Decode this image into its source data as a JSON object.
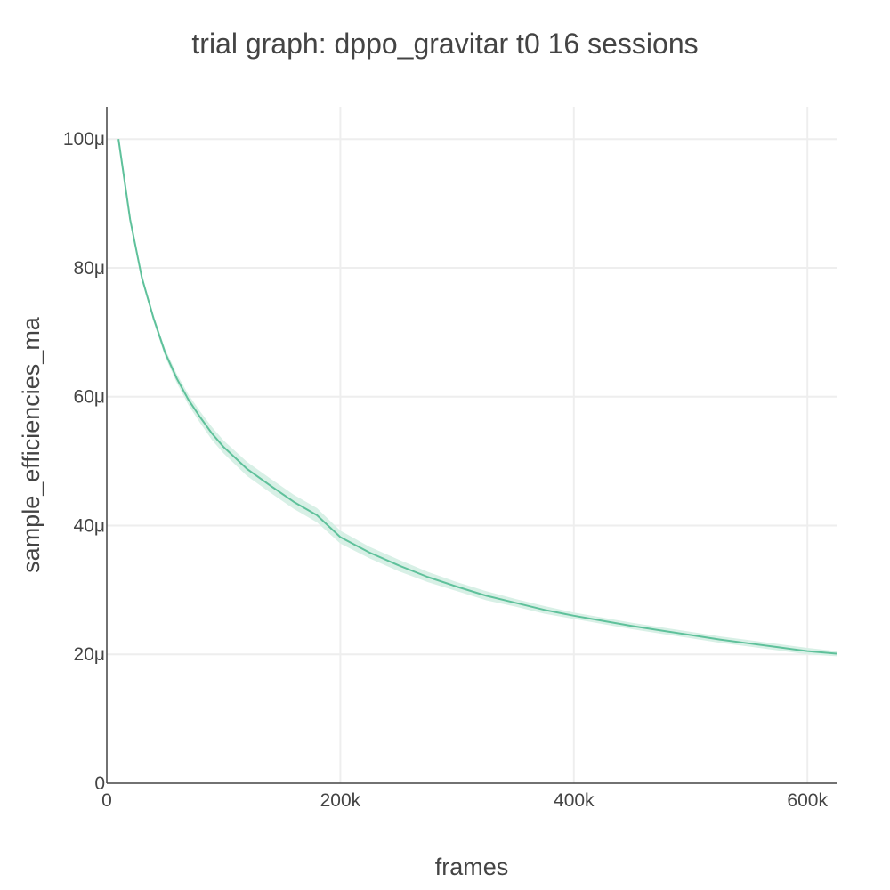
{
  "chart_data": {
    "type": "line",
    "title": "trial graph: dppo_gravitar t0 16 sessions",
    "xlabel": "frames",
    "ylabel": "sample_efficiencies_ma",
    "xlim": [
      0,
      625000
    ],
    "ylim": [
      0,
      0.000105
    ],
    "x_ticks": [
      {
        "value": 0,
        "label": "0"
      },
      {
        "value": 200000,
        "label": "200k"
      },
      {
        "value": 400000,
        "label": "400k"
      },
      {
        "value": 600000,
        "label": "600k"
      }
    ],
    "y_ticks": [
      {
        "value": 0,
        "label": "0"
      },
      {
        "value": 2e-05,
        "label": "20μ"
      },
      {
        "value": 4e-05,
        "label": "40μ"
      },
      {
        "value": 6e-05,
        "label": "60μ"
      },
      {
        "value": 8e-05,
        "label": "80μ"
      },
      {
        "value": 0.0001,
        "label": "100μ"
      }
    ],
    "grid": true,
    "line_color": "#5fc19b",
    "band_color": "#d8f0e6",
    "series": [
      {
        "x": [
          10000,
          20000,
          30000,
          40000,
          50000,
          60000,
          70000,
          80000,
          90000,
          100000,
          120000,
          140000,
          160000,
          180000,
          200000,
          225000,
          250000,
          275000,
          300000,
          325000,
          350000,
          375000,
          400000,
          425000,
          450000,
          475000,
          500000,
          525000,
          550000,
          575000,
          600000,
          625000
        ],
        "y": [
          0.0001,
          8.75e-05,
          7.85e-05,
          7.22e-05,
          6.68e-05,
          6.28e-05,
          5.95e-05,
          5.68e-05,
          5.43e-05,
          5.22e-05,
          4.88e-05,
          4.62e-05,
          4.37e-05,
          4.16e-05,
          3.82e-05,
          3.58e-05,
          3.38e-05,
          3.2e-05,
          3.05e-05,
          2.91e-05,
          2.8e-05,
          2.69e-05,
          2.6e-05,
          2.52e-05,
          2.44e-05,
          2.37e-05,
          2.3e-05,
          2.23e-05,
          2.17e-05,
          2.11e-05,
          2.05e-05,
          2.01e-05
        ],
        "y_upper": [
          0.0001,
          8.78e-05,
          7.89e-05,
          7.27e-05,
          6.74e-05,
          6.35e-05,
          6.03e-05,
          5.77e-05,
          5.53e-05,
          5.32e-05,
          4.99e-05,
          4.73e-05,
          4.48e-05,
          4.27e-05,
          3.92e-05,
          3.67e-05,
          3.47e-05,
          3.28e-05,
          3.12e-05,
          2.98e-05,
          2.86e-05,
          2.75e-05,
          2.65e-05,
          2.57e-05,
          2.49e-05,
          2.42e-05,
          2.35e-05,
          2.28e-05,
          2.22e-05,
          2.16e-05,
          2.1e-05,
          2.05e-05
        ],
        "y_lower": [
          0.0001,
          8.72e-05,
          7.81e-05,
          7.17e-05,
          6.62e-05,
          6.21e-05,
          5.87e-05,
          5.59e-05,
          5.33e-05,
          5.12e-05,
          4.77e-05,
          4.51e-05,
          4.26e-05,
          4.05e-05,
          3.72e-05,
          3.49e-05,
          3.29e-05,
          3.12e-05,
          2.98e-05,
          2.84e-05,
          2.74e-05,
          2.63e-05,
          2.55e-05,
          2.47e-05,
          2.39e-05,
          2.32e-05,
          2.25e-05,
          2.18e-05,
          2.12e-05,
          2.06e-05,
          2e-05,
          1.97e-05
        ]
      }
    ]
  }
}
